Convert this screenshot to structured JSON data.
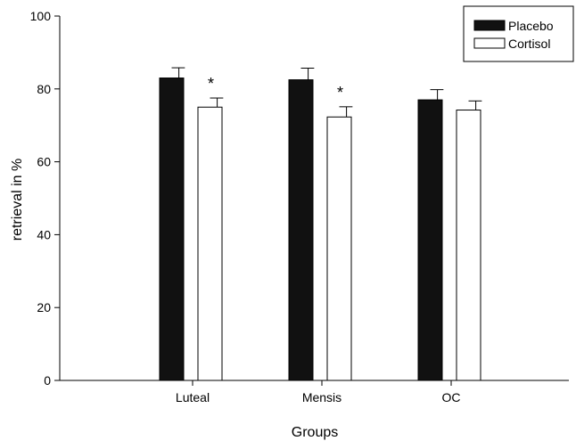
{
  "chart_data": {
    "type": "bar",
    "title": "",
    "xlabel": "Groups",
    "ylabel": "retrieval in %",
    "categories": [
      "Luteal",
      "Mensis",
      "OC"
    ],
    "series": [
      {
        "name": "Placebo",
        "values": [
          83,
          82.5,
          77
        ],
        "errors": [
          2.8,
          3.2,
          2.8
        ],
        "color": "#111111"
      },
      {
        "name": "Cortisol",
        "values": [
          75,
          72.3,
          74.2
        ],
        "errors": [
          2.5,
          2.8,
          2.5
        ],
        "color": "#ffffff"
      }
    ],
    "ylim": [
      0,
      100
    ],
    "yticks": [
      0,
      20,
      40,
      60,
      80,
      100
    ],
    "yticklabels": [
      "0",
      "20",
      "40",
      "60",
      "80",
      "100"
    ],
    "annotations": [
      {
        "category": "Luteal",
        "series": "Cortisol",
        "text": "*"
      },
      {
        "category": "Mensis",
        "series": "Cortisol",
        "text": "*"
      }
    ],
    "legend": {
      "position": "top-right",
      "entries": [
        "Placebo",
        "Cortisol"
      ]
    },
    "grid": false
  }
}
